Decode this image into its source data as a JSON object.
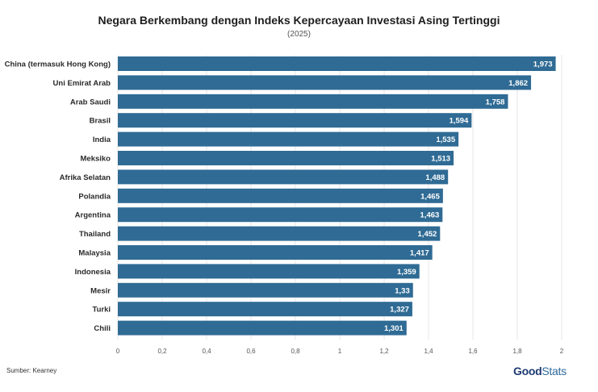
{
  "chart_data": {
    "type": "bar",
    "orientation": "horizontal",
    "title": "Negara Berkembang dengan Indeks Kepercayaan Investasi Asing Tertinggi",
    "subtitle": "(2025)",
    "categories": [
      "China (termasuk Hong Kong)",
      "Uni Emirat Arab",
      "Arab Saudi",
      "Brasil",
      "India",
      "Meksiko",
      "Afrika Selatan",
      "Polandia",
      "Argentina",
      "Thailand",
      "Malaysia",
      "Indonesia",
      "Mesir",
      "Turki",
      "Chili"
    ],
    "values": [
      1.973,
      1.862,
      1.758,
      1.594,
      1.535,
      1.513,
      1.488,
      1.465,
      1.463,
      1.452,
      1.417,
      1.359,
      1.33,
      1.327,
      1.301
    ],
    "value_labels": [
      "1,973",
      "1,862",
      "1,758",
      "1,594",
      "1,535",
      "1,513",
      "1,488",
      "1,465",
      "1,463",
      "1,452",
      "1,417",
      "1,359",
      "1,33",
      "1,327",
      "1,301"
    ],
    "xlim": [
      0,
      2
    ],
    "x_ticks": [
      0,
      0.2,
      0.4,
      0.6,
      0.8,
      1,
      1.2,
      1.4,
      1.6,
      1.8,
      2
    ],
    "x_tick_labels": [
      "0",
      "0,2",
      "0,4",
      "0,6",
      "0,8",
      "1",
      "1,2",
      "1,4",
      "1,6",
      "1,8",
      "2"
    ],
    "grid": true,
    "bar_color": "#2f6b94",
    "xlabel": "",
    "ylabel": ""
  },
  "source": "Sumber: Kearney",
  "logo": {
    "part1": "Good",
    "part2": "Stats"
  }
}
